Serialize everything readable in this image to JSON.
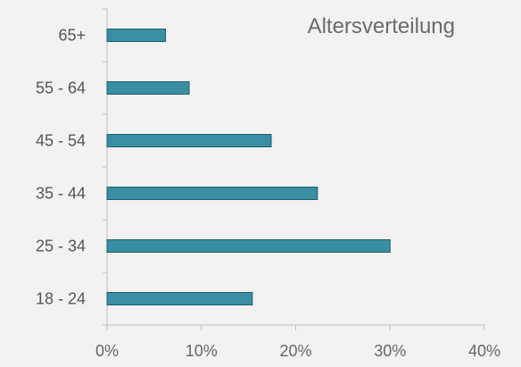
{
  "chart_data": {
    "type": "bar",
    "orientation": "horizontal",
    "title": "Altersverteilung",
    "categories": [
      "18 - 24",
      "25 - 34",
      "35 - 44",
      "45 - 54",
      "55 - 64",
      "65+"
    ],
    "values": [
      15.4,
      30.0,
      22.3,
      17.4,
      8.7,
      6.2
    ],
    "xlim": [
      0,
      40
    ],
    "xticks": [
      "0%",
      "10%",
      "20%",
      "30%",
      "40%"
    ],
    "xlabel": "",
    "ylabel": "",
    "grid": false,
    "legend": "none",
    "colors": {
      "bar_fill": "#3a8ea3",
      "bar_stroke": "#1f5f70",
      "axis": "#bfbfbf"
    }
  }
}
